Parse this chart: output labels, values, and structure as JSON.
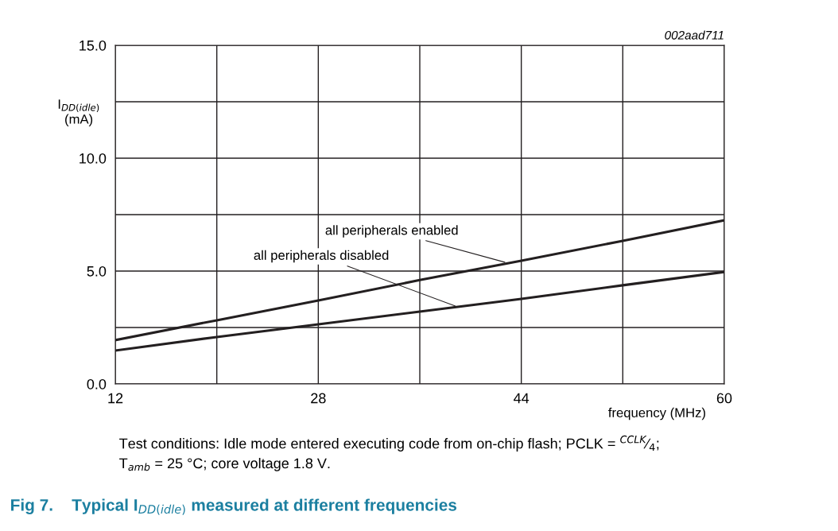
{
  "chart_data": {
    "type": "line",
    "title": "Fig 7.    Typical I$_{DD(idle)}$ measured at different frequencies",
    "xlabel": "frequency (MHz)",
    "ylabel": "I$_{DD(idle)}$\n(mA)",
    "x": [
      12,
      20,
      28,
      36,
      44,
      52,
      60
    ],
    "series": [
      {
        "color": "#231f20",
        "values": [
          1.94,
          2.82,
          3.7,
          4.6,
          5.46,
          6.34,
          7.25
        ]
      },
      {
        "color": "#231f20",
        "values": [
          1.48,
          2.08,
          2.64,
          3.2,
          3.77,
          4.37,
          4.96
        ]
      }
    ],
    "xlim": [
      12,
      60
    ],
    "xticks": [
      12,
      {
        "value": 20,
        "label": null
      },
      28,
      {
        "value": 36,
        "label": null
      },
      44,
      {
        "value": 52,
        "label": null
      },
      60
    ],
    "ylim": [
      0,
      15
    ],
    "yticks": [
      {
        "value": 0,
        "label": "0.0"
      },
      {
        "value": 2.5,
        "label": null
      },
      {
        "value": 5,
        "label": "5.0"
      },
      {
        "value": 7.5,
        "label": null
      },
      {
        "value": 10,
        "label": "10.0"
      },
      {
        "value": 12.5,
        "label": null
      },
      {
        "value": 15,
        "label": "15.0"
      }
    ],
    "grid": true,
    "line_style": "solid",
    "marker": "none",
    "annotations": [
      "002aad711",
      "Test conditions: Idle mode entered executing code from on-chip flash; PCLK = $^{CCLK}$⁄$_{4}$;\nT$_{amb}$ = 25 °C; core voltage 1.8 V.",
      {
        "text": "all peripherals enabled",
        "x": 42.7,
        "y": 5.39
      },
      {
        "text": "all peripherals disabled",
        "x": 38.8,
        "y": 3.45
      }
    ]
  }
}
